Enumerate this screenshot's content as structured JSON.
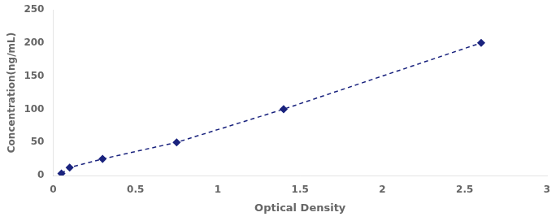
{
  "chart_data": {
    "type": "line",
    "x": [
      0.05,
      0.1,
      0.3,
      0.75,
      1.4,
      2.6
    ],
    "values": [
      3,
      12,
      25,
      50,
      100,
      200
    ],
    "color": "#1a237e",
    "marker": "diamond",
    "line_style": "dashed",
    "xlabel": "Optical Density",
    "ylabel": "Concentration(ng/mL)",
    "xlim": [
      0,
      3
    ],
    "ylim": [
      0,
      250
    ],
    "xticks": [
      0,
      0.5,
      1,
      1.5,
      2,
      2.5,
      3
    ],
    "yticks": [
      0,
      50,
      100,
      150,
      200,
      250
    ],
    "grid": false
  }
}
